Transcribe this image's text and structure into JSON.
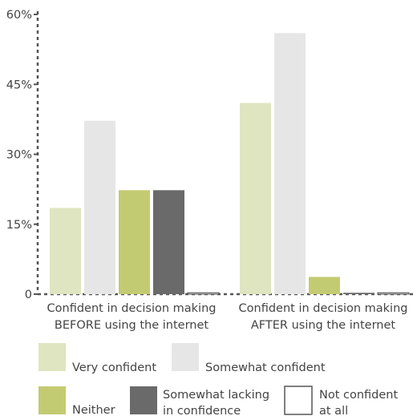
{
  "chart_data": {
    "type": "bar",
    "categories": [
      [
        "Confident in decision making",
        "BEFORE using the internet"
      ],
      [
        "Confident in decision making",
        "AFTER using the internet"
      ]
    ],
    "series": [
      {
        "name": "Very confident",
        "values": [
          18.5,
          41
        ],
        "color": "#dfe5c0",
        "stroke": "none"
      },
      {
        "name": "Somewhat confident",
        "values": [
          37.2,
          56
        ],
        "color": "#e6e6e6",
        "stroke": "none"
      },
      {
        "name": "Neither",
        "values": [
          22.3,
          3.7
        ],
        "color": "#c3cb72",
        "stroke": "none"
      },
      {
        "name": "Somewhat lacking in confidence",
        "values": [
          22.3,
          0.3
        ],
        "color": "#6a6a6a",
        "stroke": "none"
      },
      {
        "name": "Not confident at all",
        "values": [
          0.3,
          0.3
        ],
        "color": "#ffffff",
        "stroke": "#444444"
      }
    ],
    "legend_labels": [
      [
        "Very confident"
      ],
      [
        "Somewhat confident"
      ],
      [
        "Neither"
      ],
      [
        "Somewhat lacking",
        "in confidence"
      ],
      [
        "Not confident",
        "at all"
      ]
    ],
    "yticks": [
      "0",
      "15%",
      "30%",
      "45%",
      "60%"
    ],
    "ytick_values": [
      0,
      15,
      30,
      45,
      60
    ],
    "ylim": [
      0,
      60
    ],
    "grid": false,
    "legend_position": "bottom"
  }
}
